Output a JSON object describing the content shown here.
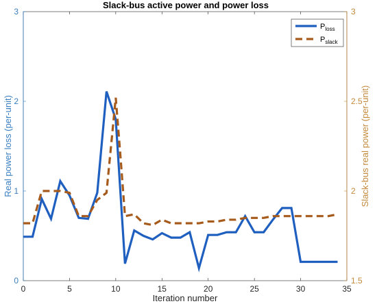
{
  "chart_data": {
    "type": "line",
    "title": "Slack-bus active power and power loss",
    "xlabel": "Iteration number",
    "ylabel_left": "Real power loss (per-unit)",
    "ylabel_right": "Slack-bus real power (per-unit)",
    "xlim": [
      0,
      35
    ],
    "ylim_left": [
      0,
      3
    ],
    "ylim_right": [
      1.5,
      3
    ],
    "xticks": [
      0,
      5,
      10,
      15,
      20,
      25,
      30,
      35
    ],
    "yticks_left": [
      0,
      1,
      2,
      3
    ],
    "yticks_right": [
      1.5,
      2,
      2.5,
      3
    ],
    "grid": false,
    "legend_position": "top-right",
    "colors": {
      "left_axis": "#3a7fc1",
      "right_axis": "#c48a3c",
      "loss": "#1f5fbf",
      "slack": "#a65a1b"
    },
    "series": [
      {
        "name": "P",
        "subscript": "loss",
        "axis": "left",
        "style": "solid",
        "x": [
          0,
          1,
          2,
          3,
          4,
          5,
          6,
          7,
          8,
          9,
          10,
          11,
          12,
          13,
          14,
          15,
          16,
          17,
          18,
          19,
          20,
          21,
          22,
          23,
          24,
          25,
          26,
          27,
          28,
          29,
          30,
          31,
          32,
          33,
          34
        ],
        "values": [
          0.49,
          0.49,
          0.91,
          0.69,
          1.11,
          0.95,
          0.7,
          0.69,
          0.98,
          2.11,
          1.8,
          0.19,
          0.56,
          0.5,
          0.46,
          0.53,
          0.48,
          0.48,
          0.54,
          0.14,
          0.51,
          0.51,
          0.54,
          0.54,
          0.72,
          0.54,
          0.54,
          0.68,
          0.81,
          0.81,
          0.21,
          0.21,
          0.21,
          0.21,
          0.21
        ]
      },
      {
        "name": "P",
        "subscript": "slack",
        "axis": "right",
        "style": "dashed",
        "x": [
          0,
          1,
          2,
          3,
          4,
          5,
          6,
          7,
          8,
          9,
          10,
          10.5,
          11,
          12,
          13,
          14,
          15,
          16,
          17,
          18,
          19,
          20,
          21,
          22,
          23,
          24,
          25,
          26,
          27,
          28,
          29,
          30,
          31,
          32,
          33,
          34
        ],
        "values": [
          1.82,
          1.82,
          2.0,
          2.0,
          2.0,
          1.99,
          1.86,
          1.86,
          1.95,
          1.99,
          2.52,
          2.2,
          1.86,
          1.87,
          1.82,
          1.81,
          1.84,
          1.82,
          1.82,
          1.82,
          1.82,
          1.83,
          1.83,
          1.84,
          1.84,
          1.85,
          1.85,
          1.85,
          1.86,
          1.86,
          1.86,
          1.86,
          1.86,
          1.86,
          1.86,
          1.87
        ]
      }
    ]
  }
}
